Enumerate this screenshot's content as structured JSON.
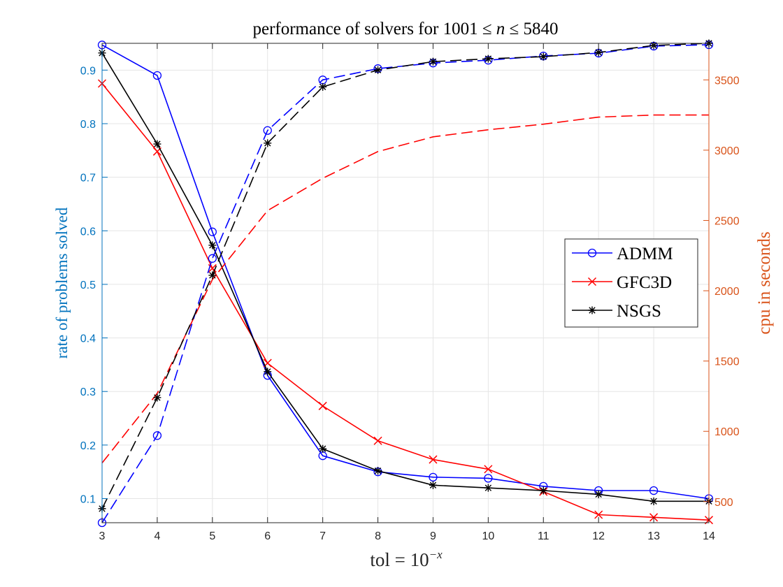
{
  "chart_data": {
    "type": "line",
    "title": "performance of solvers for 1001 ≤ n ≤ 5840",
    "xlabel": "tol = 10^-x",
    "ylabel_left": "rate of problems solved",
    "ylabel_right": "cpu in seconds",
    "x": [
      3,
      4,
      5,
      6,
      7,
      8,
      9,
      10,
      11,
      12,
      13,
      14
    ],
    "xlim": [
      3,
      14
    ],
    "ylim_left": [
      0.055,
      0.95
    ],
    "ylim_right": [
      350,
      3760
    ],
    "yticks_left": [
      0.1,
      0.2,
      0.3,
      0.4,
      0.5,
      0.6,
      0.7,
      0.8,
      0.9
    ],
    "yticks_right": [
      500,
      1000,
      1500,
      2000,
      2500,
      3000,
      3500
    ],
    "grid": true,
    "legend_position": "right",
    "title_parts": {
      "pre": "performance of solvers for 1001 ≤ ",
      "var": "n",
      "post": " ≤ 5840"
    },
    "xlabel_parts": {
      "pre": "tol = 10",
      "sup": "−x"
    },
    "colors": {
      "left_axis": "#0072BD",
      "right_axis": "#D95319"
    },
    "series": [
      {
        "name": "ADMM",
        "axis": "left",
        "style": "solid",
        "marker": "circle",
        "color": "#0000FF",
        "values": [
          0.947,
          0.89,
          0.598,
          0.33,
          0.18,
          0.15,
          0.14,
          0.138,
          0.123,
          0.115,
          0.115,
          0.1
        ]
      },
      {
        "name": "GFC3D",
        "axis": "left",
        "style": "solid",
        "marker": "x",
        "color": "#FF0000",
        "values": [
          0.875,
          0.748,
          0.53,
          0.353,
          0.273,
          0.208,
          0.173,
          0.155,
          0.113,
          0.07,
          0.065,
          0.06
        ]
      },
      {
        "name": "NSGS",
        "axis": "left",
        "style": "solid",
        "marker": "asterisk",
        "color": "#000000",
        "values": [
          0.932,
          0.762,
          0.573,
          0.337,
          0.193,
          0.152,
          0.125,
          0.12,
          0.115,
          0.108,
          0.095,
          0.095
        ]
      },
      {
        "name": "ADMM cpu",
        "axis": "right",
        "style": "dashed",
        "marker": "circle",
        "color": "#0000FF",
        "values": [
          350,
          970,
          2230,
          3140,
          3500,
          3580,
          3620,
          3640,
          3670,
          3690,
          3740,
          3750
        ]
      },
      {
        "name": "GFC3D cpu",
        "axis": "right",
        "style": "dashed",
        "marker": "none",
        "color": "#FF0000",
        "values": [
          775,
          1270,
          2080,
          2570,
          2800,
          2990,
          3095,
          3145,
          3185,
          3235,
          3250,
          3250
        ]
      },
      {
        "name": "NSGS cpu",
        "axis": "right",
        "style": "dashed",
        "marker": "asterisk",
        "color": "#000000",
        "values": [
          450,
          1240,
          2110,
          3050,
          3450,
          3570,
          3630,
          3650,
          3665,
          3695,
          3745,
          3760
        ]
      }
    ],
    "legend": [
      {
        "name": "ADMM",
        "marker": "circle",
        "color": "#0000FF"
      },
      {
        "name": "GFC3D",
        "marker": "x",
        "color": "#FF0000"
      },
      {
        "name": "NSGS",
        "marker": "asterisk",
        "color": "#000000"
      }
    ]
  }
}
